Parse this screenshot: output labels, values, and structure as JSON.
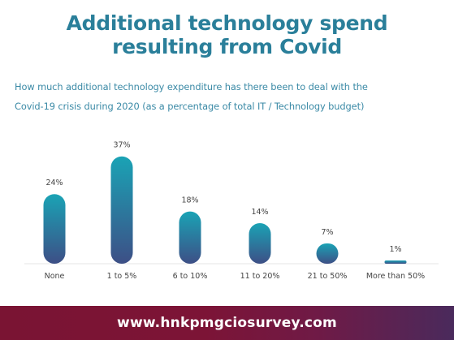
{
  "title_line1": "Additional technology spend",
  "title_line2": "resulting from Covid",
  "subtitle_line1": "How much additional technology expenditure has there been to deal with the",
  "subtitle_line2": "Covid-19 crisis during 2020 (as a percentage of total IT / Technology budget)",
  "footer_url": "www.hnkpmgciosurvey.com",
  "colors": {
    "title": "#2a7f9a",
    "subtitle": "#3b8aa6",
    "bar_top": "#1aa3b5",
    "bar_bottom": "#3d4f86",
    "label": "#444444",
    "footer": "#7a1433"
  },
  "chart_data": {
    "type": "bar",
    "categories": [
      "None",
      "1 to 5%",
      "6 to 10%",
      "11 to 20%",
      "21 to 50%",
      "More than 50%"
    ],
    "values": [
      24,
      37,
      18,
      14,
      7,
      1
    ],
    "value_labels": [
      "24%",
      "37%",
      "18%",
      "14%",
      "7%",
      "1%"
    ],
    "ylim": [
      0,
      40
    ],
    "grid": false,
    "legend": "none"
  }
}
